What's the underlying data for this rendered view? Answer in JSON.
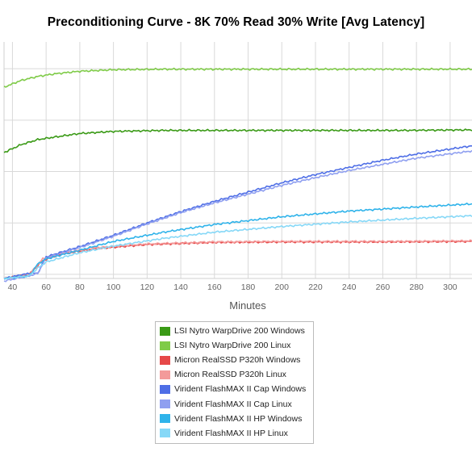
{
  "chart_data": {
    "type": "line",
    "title": "Preconditioning Curve - 8K 70% Read 30% Write [Avg Latency]",
    "xlabel": "Minutes",
    "ylabel": "",
    "x_ticks": [
      40,
      60,
      80,
      100,
      120,
      140,
      160,
      180,
      200,
      220,
      240,
      260,
      280,
      300
    ],
    "xlim": [
      35,
      313
    ],
    "ylim": [
      0,
      4.6
    ],
    "grid": true,
    "legend_position": "bottom",
    "series": [
      {
        "name": "LSI Nytro WarpDrive 200 Windows",
        "color": "#3a9a16",
        "x": [
          35,
          45,
          55,
          65,
          80,
          100,
          130,
          170,
          220,
          270,
          313
        ],
        "y": [
          2.45,
          2.6,
          2.7,
          2.75,
          2.82,
          2.86,
          2.88,
          2.88,
          2.88,
          2.88,
          2.89
        ]
      },
      {
        "name": "LSI Nytro WarpDrive 200 Linux",
        "color": "#7fcb48",
        "x": [
          35,
          45,
          55,
          65,
          80,
          100,
          130,
          170,
          220,
          270,
          313
        ],
        "y": [
          3.72,
          3.85,
          3.93,
          3.98,
          4.03,
          4.06,
          4.07,
          4.07,
          4.07,
          4.07,
          4.07
        ]
      },
      {
        "name": "Micron RealSSD P320h Windows",
        "color": "#e64848",
        "x": [
          35,
          50,
          58,
          70,
          90,
          120,
          160,
          200,
          260,
          313
        ],
        "y": [
          0.0,
          0.08,
          0.35,
          0.48,
          0.58,
          0.66,
          0.7,
          0.71,
          0.71,
          0.72
        ]
      },
      {
        "name": "Micron RealSSD P320h Linux",
        "color": "#f39a9a",
        "x": [
          35,
          50,
          58,
          70,
          90,
          120,
          160,
          200,
          260,
          313
        ],
        "y": [
          0.0,
          0.08,
          0.38,
          0.5,
          0.6,
          0.67,
          0.71,
          0.72,
          0.72,
          0.73
        ]
      },
      {
        "name": "Virident FlashMAX II Cap Windows",
        "color": "#4e6ee6",
        "x": [
          35,
          50,
          55,
          60,
          80,
          100,
          120,
          140,
          160,
          180,
          200,
          220,
          240,
          260,
          280,
          313
        ],
        "y": [
          0.0,
          0.1,
          0.1,
          0.42,
          0.62,
          0.84,
          1.08,
          1.3,
          1.5,
          1.68,
          1.86,
          2.02,
          2.16,
          2.3,
          2.42,
          2.58
        ]
      },
      {
        "name": "Virident FlashMAX II Cap Linux",
        "color": "#8f9ff0",
        "x": [
          35,
          50,
          55,
          60,
          80,
          100,
          120,
          140,
          160,
          180,
          200,
          220,
          240,
          260,
          280,
          313
        ],
        "y": [
          -0.05,
          0.05,
          0.1,
          0.4,
          0.6,
          0.82,
          1.06,
          1.28,
          1.47,
          1.64,
          1.81,
          1.96,
          2.1,
          2.22,
          2.34,
          2.48
        ]
      },
      {
        "name": "Virident FlashMAX II HP Windows",
        "color": "#2fb3ea",
        "x": [
          35,
          50,
          55,
          60,
          80,
          100,
          130,
          160,
          200,
          240,
          280,
          313
        ],
        "y": [
          0.0,
          0.05,
          0.28,
          0.38,
          0.55,
          0.72,
          0.9,
          1.05,
          1.2,
          1.31,
          1.39,
          1.45
        ]
      },
      {
        "name": "Virident FlashMAX II HP Linux",
        "color": "#86d8f7",
        "x": [
          35,
          50,
          55,
          60,
          80,
          100,
          130,
          160,
          200,
          240,
          280,
          313
        ],
        "y": [
          0.0,
          0.05,
          0.2,
          0.32,
          0.5,
          0.63,
          0.78,
          0.9,
          1.01,
          1.1,
          1.17,
          1.22
        ]
      }
    ]
  }
}
